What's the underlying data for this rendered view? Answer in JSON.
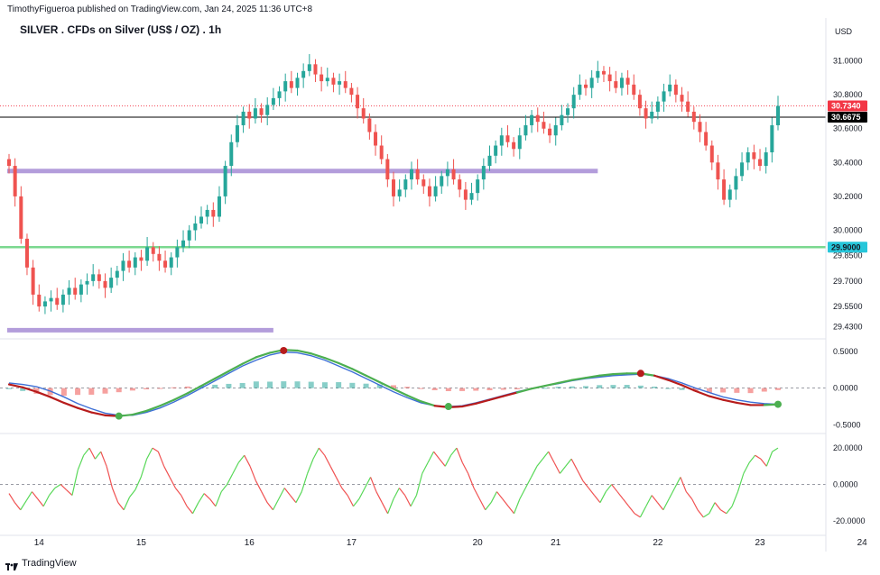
{
  "header": {
    "publisher": "TimothyFigueroa published on TradingView.com, Jan 24, 2025 11:36 UTC+8",
    "title": "SILVER . CFDs on Silver (US$ / OZ) . 1h",
    "currency": "USD"
  },
  "footer": {
    "brand": "TradingView"
  },
  "colors": {
    "candle_up": "#26a69a",
    "candle_down": "#ef5350",
    "support_line": "#7bd88f",
    "zone": "#b39ddb",
    "last_price": "#f23645",
    "ref_price": "#000000",
    "fast_line": "#4caf50",
    "slow_line": "#3d6fd6",
    "bear_line": "#b71c1c",
    "osc_up": "#58d858",
    "osc_down": "#f05252"
  },
  "chart_data": [
    {
      "type": "candlestick",
      "title": "SILVER . CFDs on Silver (US$ / OZ) . 1h",
      "ylabel": "USD",
      "ylim": [
        29.38,
        31.12
      ],
      "y_ticks": [
        "31.0000",
        "30.8000",
        "30.6000",
        "30.4000",
        "30.2000",
        "30.0000",
        "29.8500",
        "29.7000",
        "29.5500",
        "29.4300"
      ],
      "y_tick_values": [
        31.0,
        30.8,
        30.6,
        30.4,
        30.2,
        30.0,
        29.85,
        29.7,
        29.55,
        29.43
      ],
      "x_ticks": [
        "14",
        "15",
        "16",
        "17",
        "20",
        "21",
        "22",
        "23",
        "24"
      ],
      "x_tick_index": [
        5,
        22,
        40,
        57,
        78,
        91,
        108,
        125,
        142
      ],
      "close": [
        30.38,
        30.2,
        29.95,
        29.78,
        29.62,
        29.55,
        29.58,
        29.6,
        29.56,
        29.62,
        29.66,
        29.62,
        29.68,
        29.7,
        29.74,
        29.7,
        29.66,
        29.72,
        29.76,
        29.82,
        29.78,
        29.84,
        29.82,
        29.9,
        29.86,
        29.82,
        29.78,
        29.84,
        29.9,
        29.94,
        30.0,
        30.04,
        30.08,
        30.12,
        30.08,
        30.2,
        30.38,
        30.52,
        30.62,
        30.7,
        30.66,
        30.72,
        30.68,
        30.74,
        30.78,
        30.82,
        30.88,
        30.84,
        30.9,
        30.94,
        30.98,
        30.92,
        30.88,
        30.9,
        30.86,
        30.88,
        30.84,
        30.8,
        30.72,
        30.66,
        30.58,
        30.5,
        30.42,
        30.3,
        30.2,
        30.24,
        30.3,
        30.36,
        30.3,
        30.26,
        30.2,
        30.26,
        30.32,
        30.36,
        30.3,
        30.24,
        30.18,
        30.22,
        30.3,
        30.38,
        30.44,
        30.5,
        30.56,
        30.52,
        30.48,
        30.56,
        30.62,
        30.68,
        30.64,
        30.6,
        30.56,
        30.62,
        30.68,
        30.72,
        30.8,
        30.86,
        30.84,
        30.9,
        30.94,
        30.92,
        30.88,
        30.84,
        30.9,
        30.86,
        30.8,
        30.72,
        30.66,
        30.7,
        30.76,
        30.82,
        30.86,
        30.8,
        30.76,
        30.7,
        30.64,
        30.58,
        30.5,
        30.4,
        30.3,
        30.18,
        30.24,
        30.32,
        30.4,
        30.46,
        30.42,
        30.38,
        30.46,
        30.62,
        30.734
      ],
      "price_lines": [
        {
          "label": "29.9000",
          "value": 29.9,
          "kind": "support"
        },
        {
          "label": "30.6675",
          "value": 30.6675,
          "kind": "reference"
        },
        {
          "label": "30.7340",
          "value": 30.734,
          "kind": "last"
        }
      ],
      "zones": [
        {
          "value": 30.35,
          "from_index": 0,
          "to_index": 98
        },
        {
          "value": 29.41,
          "from_index": 0,
          "to_index": 44
        }
      ]
    },
    {
      "type": "line",
      "name": "oscillator-1",
      "ylim": [
        -0.58,
        0.62
      ],
      "y_ticks": [
        "0.5000",
        "0.0000",
        "-0.5000"
      ],
      "y_tick_values": [
        0.5,
        0.0,
        -0.5
      ],
      "fast": [
        0.05,
        0.01,
        -0.05,
        -0.12,
        -0.2,
        -0.27,
        -0.33,
        -0.37,
        -0.38,
        -0.36,
        -0.31,
        -0.24,
        -0.16,
        -0.07,
        0.03,
        0.13,
        0.23,
        0.33,
        0.42,
        0.48,
        0.52,
        0.51,
        0.47,
        0.41,
        0.34,
        0.26,
        0.17,
        0.08,
        -0.01,
        -0.1,
        -0.18,
        -0.24,
        -0.26,
        -0.25,
        -0.21,
        -0.16,
        -0.11,
        -0.06,
        -0.01,
        0.03,
        0.07,
        0.11,
        0.14,
        0.17,
        0.19,
        0.2,
        0.2,
        0.17,
        0.11,
        0.04,
        -0.04,
        -0.11,
        -0.16,
        -0.2,
        -0.23,
        -0.23,
        -0.22
      ],
      "slow": [
        0.07,
        0.05,
        0.02,
        -0.04,
        -0.12,
        -0.21,
        -0.28,
        -0.34,
        -0.37,
        -0.37,
        -0.33,
        -0.27,
        -0.19,
        -0.1,
        0.0,
        0.1,
        0.2,
        0.3,
        0.38,
        0.45,
        0.49,
        0.48,
        0.44,
        0.38,
        0.3,
        0.22,
        0.13,
        0.04,
        -0.05,
        -0.13,
        -0.2,
        -0.24,
        -0.25,
        -0.24,
        -0.2,
        -0.15,
        -0.1,
        -0.05,
        -0.01,
        0.03,
        0.06,
        0.1,
        0.13,
        0.15,
        0.17,
        0.18,
        0.19,
        0.17,
        0.13,
        0.07,
        0.0,
        -0.06,
        -0.12,
        -0.16,
        -0.19,
        -0.21,
        -0.22
      ],
      "signals": [
        {
          "index": 8,
          "value": -0.38,
          "kind": "bullish"
        },
        {
          "index": 20,
          "value": 0.51,
          "kind": "bearish"
        },
        {
          "index": 32,
          "value": -0.25,
          "kind": "bullish"
        },
        {
          "index": 46,
          "value": 0.2,
          "kind": "bearish"
        },
        {
          "index": 56,
          "value": -0.22,
          "kind": "bullish"
        }
      ]
    },
    {
      "type": "line",
      "name": "oscillator-2",
      "ylim": [
        -27,
        26
      ],
      "y_ticks": [
        "20.0000",
        "0.0000",
        "-20.0000"
      ],
      "y_tick_values": [
        20,
        0,
        -20
      ],
      "values": [
        -5,
        -10,
        -14,
        -9,
        -4,
        -8,
        -12,
        -6,
        -2,
        0,
        -3,
        -6,
        8,
        16,
        20,
        14,
        18,
        10,
        -2,
        -10,
        -14,
        -7,
        -3,
        4,
        14,
        20,
        18,
        10,
        4,
        -2,
        -6,
        -12,
        -16,
        -10,
        -5,
        -8,
        -12,
        -4,
        0,
        6,
        12,
        16,
        10,
        2,
        -4,
        -10,
        -14,
        -8,
        -2,
        -6,
        -10,
        -4,
        6,
        14,
        20,
        16,
        10,
        4,
        -2,
        -6,
        -12,
        -8,
        -2,
        4,
        -4,
        -10,
        -16,
        -8,
        -2,
        -6,
        -12,
        -6,
        6,
        12,
        18,
        14,
        10,
        16,
        20,
        12,
        6,
        -2,
        -8,
        -14,
        -10,
        -4,
        -8,
        -12,
        -16,
        -8,
        -2,
        4,
        10,
        14,
        18,
        12,
        6,
        10,
        14,
        8,
        2,
        -2,
        -6,
        -10,
        -4,
        0,
        -4,
        -8,
        -12,
        -16,
        -18,
        -12,
        -6,
        -10,
        -14,
        -8,
        -2,
        4,
        -4,
        -8,
        -14,
        -18,
        -16,
        -10,
        -14,
        -16,
        -12,
        -4,
        6,
        12,
        16,
        14,
        10,
        18,
        20
      ]
    }
  ]
}
